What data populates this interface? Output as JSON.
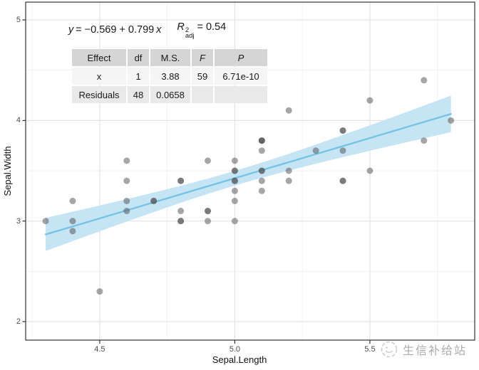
{
  "chart_data": {
    "type": "scatter",
    "title": "",
    "xlabel": "Sepal.Length",
    "ylabel": "Sepal.Width",
    "xlim": [
      4.226,
      5.888
    ],
    "ylim": [
      1.816,
      5.177
    ],
    "grid": true,
    "x_ticks": {
      "values": [
        4.5,
        5.0,
        5.5
      ],
      "labels": [
        "4.5",
        "5.0",
        "5.5"
      ]
    },
    "y_ticks": {
      "values": [
        2,
        3,
        4,
        5
      ],
      "labels": [
        "2",
        "3",
        "4",
        "5"
      ]
    },
    "x_minor_ticks": [
      4.25,
      4.75,
      5.25,
      5.75
    ],
    "y_minor_ticks": [
      2.5,
      3.5,
      4.5
    ],
    "points": [
      [
        5.1,
        3.5
      ],
      [
        4.9,
        3.0
      ],
      [
        4.7,
        3.2
      ],
      [
        4.6,
        3.1
      ],
      [
        5.0,
        3.6
      ],
      [
        5.4,
        3.9
      ],
      [
        4.6,
        3.4
      ],
      [
        5.0,
        3.4
      ],
      [
        4.4,
        2.9
      ],
      [
        4.9,
        3.1
      ],
      [
        5.4,
        3.7
      ],
      [
        4.8,
        3.4
      ],
      [
        4.8,
        3.0
      ],
      [
        4.3,
        3.0
      ],
      [
        5.8,
        4.0
      ],
      [
        5.7,
        4.4
      ],
      [
        5.4,
        3.9
      ],
      [
        5.1,
        3.5
      ],
      [
        5.7,
        3.8
      ],
      [
        5.1,
        3.8
      ],
      [
        5.4,
        3.4
      ],
      [
        5.1,
        3.7
      ],
      [
        4.6,
        3.6
      ],
      [
        5.1,
        3.3
      ],
      [
        4.8,
        3.4
      ],
      [
        5.0,
        3.0
      ],
      [
        5.0,
        3.4
      ],
      [
        5.2,
        3.5
      ],
      [
        5.2,
        3.4
      ],
      [
        4.7,
        3.2
      ],
      [
        4.8,
        3.1
      ],
      [
        5.4,
        3.4
      ],
      [
        5.2,
        4.1
      ],
      [
        5.5,
        4.2
      ],
      [
        4.9,
        3.1
      ],
      [
        5.0,
        3.2
      ],
      [
        5.5,
        3.5
      ],
      [
        4.9,
        3.6
      ],
      [
        4.4,
        3.0
      ],
      [
        5.1,
        3.4
      ],
      [
        5.0,
        3.5
      ],
      [
        4.5,
        2.3
      ],
      [
        4.4,
        3.2
      ],
      [
        5.0,
        3.5
      ],
      [
        5.1,
        3.8
      ],
      [
        4.8,
        3.0
      ],
      [
        5.1,
        3.8
      ],
      [
        4.6,
        3.2
      ],
      [
        5.3,
        3.7
      ],
      [
        5.0,
        3.3
      ]
    ],
    "regression": {
      "lhs": "y",
      "rhs": "= −0.569 + 0.799",
      "var": "x",
      "r2_base": "R",
      "r2_sup": "2",
      "r2_sub": "adj",
      "r2_value": "= 0.54",
      "intercept": -0.569,
      "slope": 0.799,
      "r2_adj": 0.54,
      "x_range": [
        4.3,
        5.8
      ]
    },
    "confidence_band": {
      "x": [
        4.3,
        4.4,
        4.5,
        4.6,
        4.7,
        4.8,
        4.9,
        5.0,
        5.1,
        5.2,
        5.3,
        5.4,
        5.5,
        5.6,
        5.7,
        5.8
      ],
      "lower": [
        2.702,
        2.8,
        2.898,
        2.995,
        3.089,
        3.182,
        3.27,
        3.353,
        3.43,
        3.502,
        3.57,
        3.636,
        3.699,
        3.761,
        3.823,
        3.884
      ],
      "upper": [
        3.031,
        3.093,
        3.155,
        3.218,
        3.283,
        3.351,
        3.422,
        3.499,
        3.581,
        3.669,
        3.761,
        3.856,
        3.952,
        4.049,
        4.148,
        4.247
      ]
    },
    "anova": {
      "headers": [
        "Effect",
        "df",
        "M.S.",
        "F",
        "P"
      ],
      "italic_headers": [
        "F",
        "P"
      ],
      "rows": [
        [
          "x",
          "1",
          "3.88",
          "59",
          "6.71e-10"
        ],
        [
          "Residuals",
          "48",
          "0.0658",
          "",
          ""
        ]
      ]
    }
  },
  "watermark": {
    "text": "生信补给站"
  },
  "colors": {
    "line": "#78C2E3",
    "confidence_band": "#C6E5F4",
    "point": "#4D4D4D",
    "point_opacity": 0.5,
    "grid_major": "#E3E3E3",
    "grid_minor": "#F1F1F1",
    "panel_border": "#333333",
    "tick_mark": "#333333",
    "tick_label": "#4D4D4D",
    "table_header_bg": "#D5D5D5",
    "table_row_odd_bg": "#F5F5F5",
    "table_row_even_bg": "#E9E9E9",
    "watermark": "#ABABAB"
  }
}
